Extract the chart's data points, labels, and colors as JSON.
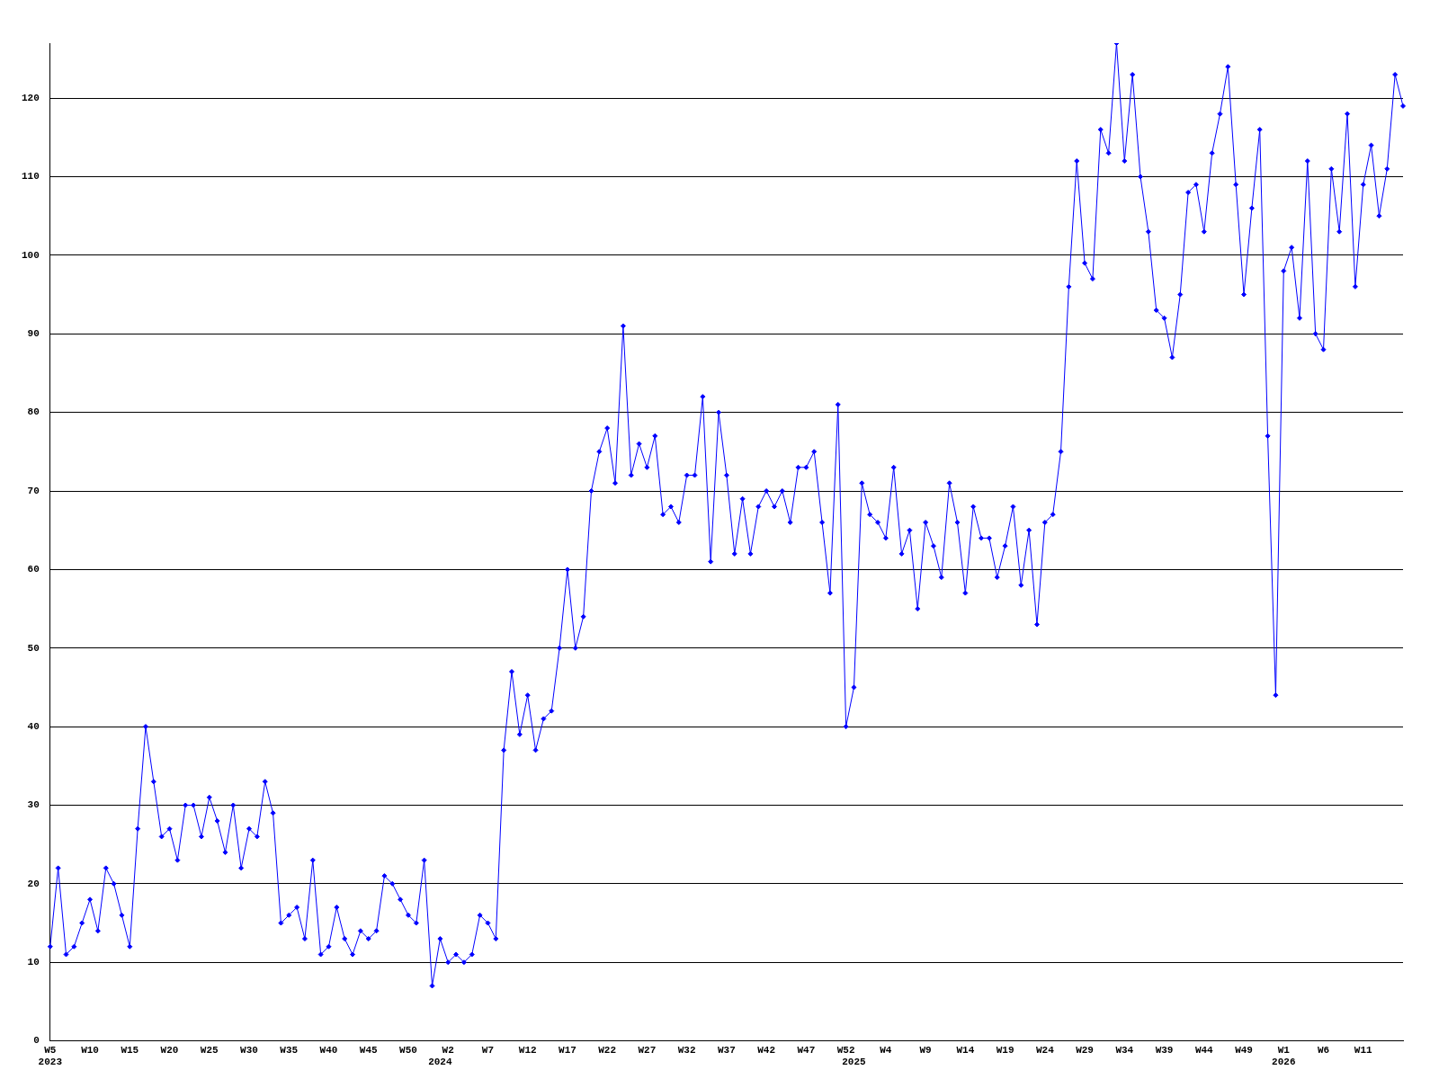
{
  "chart_data": {
    "type": "line",
    "categories": [
      "W5\n2023",
      null,
      null,
      null,
      null,
      "W10",
      null,
      null,
      null,
      null,
      "W15",
      null,
      null,
      null,
      null,
      "W20",
      null,
      null,
      null,
      null,
      "W25",
      null,
      null,
      null,
      null,
      "W30",
      null,
      null,
      null,
      null,
      "W35",
      null,
      null,
      null,
      null,
      "W40",
      null,
      null,
      null,
      null,
      "W45",
      null,
      null,
      null,
      null,
      "W50",
      null,
      null,
      null,
      "\n2024",
      "W2",
      null,
      null,
      null,
      null,
      "W7",
      null,
      null,
      null,
      null,
      "W12",
      null,
      null,
      null,
      null,
      "W17",
      null,
      null,
      null,
      null,
      "W22",
      null,
      null,
      null,
      null,
      "W27",
      null,
      null,
      null,
      null,
      "W32",
      null,
      null,
      null,
      null,
      "W37",
      null,
      null,
      null,
      null,
      "W42",
      null,
      null,
      null,
      null,
      "W47",
      null,
      null,
      null,
      null,
      "W52",
      "\n2025",
      null,
      null,
      null,
      "W4",
      null,
      null,
      null,
      null,
      "W9",
      null,
      null,
      null,
      null,
      "W14",
      null,
      null,
      null,
      null,
      "W19",
      null,
      null,
      null,
      null,
      "W24",
      null,
      null,
      null,
      null,
      "W29",
      null,
      null,
      null,
      null,
      "W34",
      null,
      null,
      null,
      null,
      "W39",
      null,
      null,
      null,
      null,
      "W44",
      null,
      null,
      null,
      null,
      "W49",
      null,
      null,
      null,
      null,
      "W1\n2026",
      null,
      null,
      null,
      null,
      "W6",
      null,
      null,
      null,
      null,
      "W11",
      null,
      null,
      null,
      null,
      null
    ],
    "series": [
      {
        "color": "#0000ff",
        "values": [
          12,
          22,
          11,
          12,
          15,
          18,
          14,
          22,
          20,
          16,
          12,
          27,
          40,
          33,
          26,
          27,
          23,
          30,
          30,
          26,
          31,
          28,
          24,
          30,
          22,
          27,
          26,
          33,
          29,
          15,
          16,
          17,
          13,
          23,
          11,
          12,
          17,
          13,
          11,
          14,
          13,
          14,
          21,
          20,
          18,
          16,
          15,
          23,
          7,
          13,
          10,
          11,
          10,
          11,
          16,
          15,
          13,
          37,
          47,
          39,
          44,
          37,
          41,
          42,
          50,
          60,
          50,
          54,
          70,
          75,
          78,
          71,
          91,
          72,
          76,
          73,
          77,
          67,
          68,
          66,
          72,
          72,
          82,
          61,
          80,
          72,
          62,
          69,
          62,
          68,
          70,
          68,
          70,
          66,
          73,
          73,
          75,
          66,
          57,
          81,
          40,
          45,
          71,
          67,
          66,
          64,
          73,
          62,
          65,
          55,
          66,
          63,
          59,
          71,
          66,
          57,
          68,
          64,
          64,
          59,
          63,
          68,
          58,
          65,
          53,
          66,
          67,
          75,
          96,
          112,
          99,
          97,
          116,
          113,
          127,
          112,
          123,
          110,
          103,
          93,
          92,
          87,
          95,
          108,
          109,
          103,
          113,
          118,
          124,
          109,
          95,
          106,
          116,
          77,
          44,
          98,
          101,
          92,
          112,
          90,
          88,
          111,
          103,
          118,
          96,
          109,
          114,
          105,
          111,
          123,
          119
        ]
      }
    ],
    "ylim": [
      0,
      127
    ],
    "yticks": [
      0,
      10,
      20,
      30,
      40,
      50,
      60,
      70,
      80,
      90,
      100,
      110,
      120
    ],
    "grid": "y",
    "legend": false,
    "marker": "diamond",
    "line_style": "solid"
  }
}
